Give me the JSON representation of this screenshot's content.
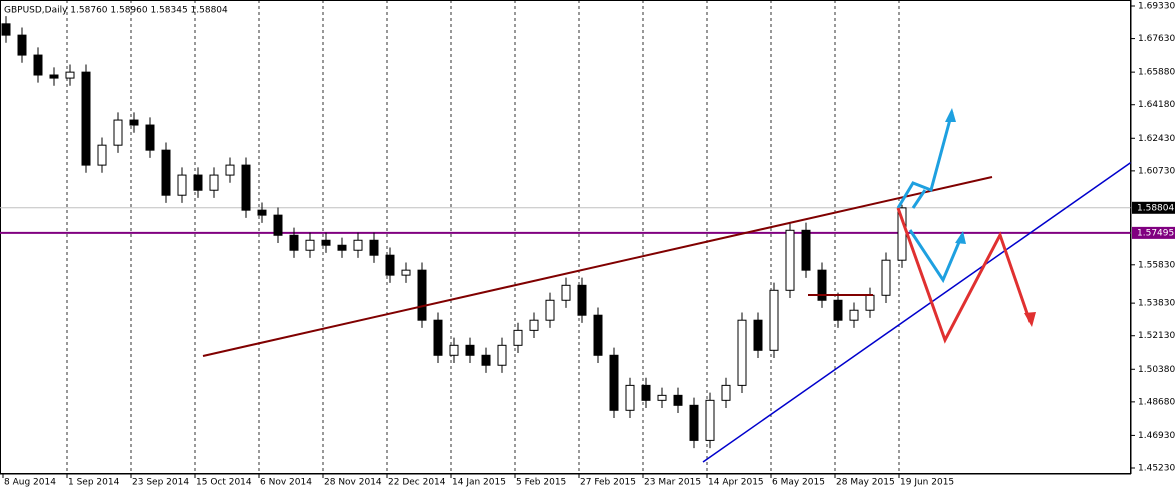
{
  "chart_data": {
    "type": "candlestick",
    "title": "GBPUSD,Daily  1.58760 1.58960 1.58345 1.58804",
    "date_labels": [
      "8 Aug 2014",
      "1 Sep 2014",
      "23 Sep 2014",
      "15 Oct 2014",
      "6 Nov 2014",
      "28 Nov 2014",
      "22 Dec 2014",
      "14 Jan 2015",
      "5 Feb 2015",
      "27 Feb 2015",
      "23 Mar 2015",
      "14 Apr 2015",
      "6 May 2015",
      "28 May 2015",
      "19 Jun 2015"
    ],
    "open": [
      1.684,
      1.6781,
      1.6677,
      1.6573,
      1.6557,
      1.6588,
      1.6103,
      1.6207,
      1.6338,
      1.6312,
      1.6181,
      1.5946,
      1.6051,
      1.5972,
      1.6051,
      1.6103,
      1.5868,
      1.5842,
      1.5737,
      1.5659,
      1.5711,
      1.5685,
      1.5659,
      1.5711,
      1.5633,
      1.5529,
      1.5555,
      1.5294,
      1.5111,
      1.5163,
      1.5111,
      1.5059,
      1.5163,
      1.5241,
      1.5294,
      1.5398,
      1.5476,
      1.532,
      1.5111,
      1.4824,
      1.4954,
      1.4876,
      1.4902,
      1.485,
      1.4667,
      1.4876,
      1.4954,
      1.5294,
      1.5137,
      1.545,
      1.5763,
      1.5555,
      1.5398,
      1.5294,
      1.5346,
      1.5424,
      1.5607
    ],
    "high": [
      1.688,
      1.6821,
      1.6717,
      1.6613,
      1.6628,
      1.6628,
      1.6247,
      1.6378,
      1.6378,
      1.6352,
      1.6221,
      1.6091,
      1.6091,
      1.6091,
      1.6143,
      1.6143,
      1.5908,
      1.5882,
      1.5777,
      1.5751,
      1.5751,
      1.5725,
      1.5751,
      1.5751,
      1.5673,
      1.5595,
      1.5595,
      1.5334,
      1.5203,
      1.5203,
      1.5151,
      1.5203,
      1.5281,
      1.5334,
      1.5438,
      1.5516,
      1.5516,
      1.536,
      1.5151,
      1.4994,
      1.4994,
      1.4942,
      1.4942,
      1.489,
      1.4916,
      1.4994,
      1.5334,
      1.5334,
      1.549,
      1.5803,
      1.5803,
      1.5595,
      1.5438,
      1.5386,
      1.5464,
      1.5647,
      1.5896
    ],
    "low": [
      1.6741,
      1.6637,
      1.6533,
      1.6517,
      1.6517,
      1.6063,
      1.6063,
      1.6167,
      1.6272,
      1.6141,
      1.5906,
      1.5906,
      1.5932,
      1.5932,
      1.6011,
      1.5828,
      1.5802,
      1.5697,
      1.5619,
      1.5619,
      1.5645,
      1.5619,
      1.5619,
      1.5593,
      1.5489,
      1.5489,
      1.5254,
      1.5071,
      1.5071,
      1.5071,
      1.5019,
      1.5019,
      1.5123,
      1.5201,
      1.5254,
      1.5358,
      1.528,
      1.5071,
      1.4784,
      1.4784,
      1.4836,
      1.4836,
      1.481,
      1.4627,
      1.4627,
      1.4836,
      1.4914,
      1.5097,
      1.5097,
      1.541,
      1.5515,
      1.5358,
      1.5254,
      1.5254,
      1.5306,
      1.5384,
      1.5567
    ],
    "close": [
      1.6781,
      1.6677,
      1.6573,
      1.6557,
      1.6588,
      1.6103,
      1.6207,
      1.6338,
      1.6312,
      1.6181,
      1.5946,
      1.6051,
      1.5972,
      1.6051,
      1.6103,
      1.5868,
      1.5842,
      1.5737,
      1.5659,
      1.5711,
      1.5685,
      1.5659,
      1.5711,
      1.5633,
      1.5529,
      1.5555,
      1.5294,
      1.5111,
      1.5163,
      1.5111,
      1.5059,
      1.5163,
      1.5241,
      1.5294,
      1.5398,
      1.5476,
      1.532,
      1.5111,
      1.4824,
      1.4954,
      1.4876,
      1.4902,
      1.485,
      1.4667,
      1.4876,
      1.4954,
      1.5294,
      1.5137,
      1.545,
      1.5763,
      1.5555,
      1.5398,
      1.5294,
      1.5346,
      1.5424,
      1.5607,
      1.588
    ],
    "ylim": [
      1.44917,
      1.69643
    ],
    "yticks": [
      {
        "value": 1.6933,
        "label": "1.69330"
      },
      {
        "value": 1.6763,
        "label": "1.67630"
      },
      {
        "value": 1.6588,
        "label": "1.65880"
      },
      {
        "value": 1.6418,
        "label": "1.64180"
      },
      {
        "value": 1.6243,
        "label": "1.62430"
      },
      {
        "value": 1.6073,
        "label": "1.60730"
      },
      {
        "value": 1.5583,
        "label": "1.55830"
      },
      {
        "value": 1.5383,
        "label": "1.53830"
      },
      {
        "value": 1.5213,
        "label": "1.52130"
      },
      {
        "value": 1.5038,
        "label": "1.50380"
      },
      {
        "value": 1.4868,
        "label": "1.48680"
      },
      {
        "value": 1.4693,
        "label": "1.46930"
      },
      {
        "value": 1.4523,
        "label": "1.45230"
      }
    ],
    "last_price": 1.58804,
    "level": 1.57495,
    "level_color": "#800080",
    "grid": true
  }
}
